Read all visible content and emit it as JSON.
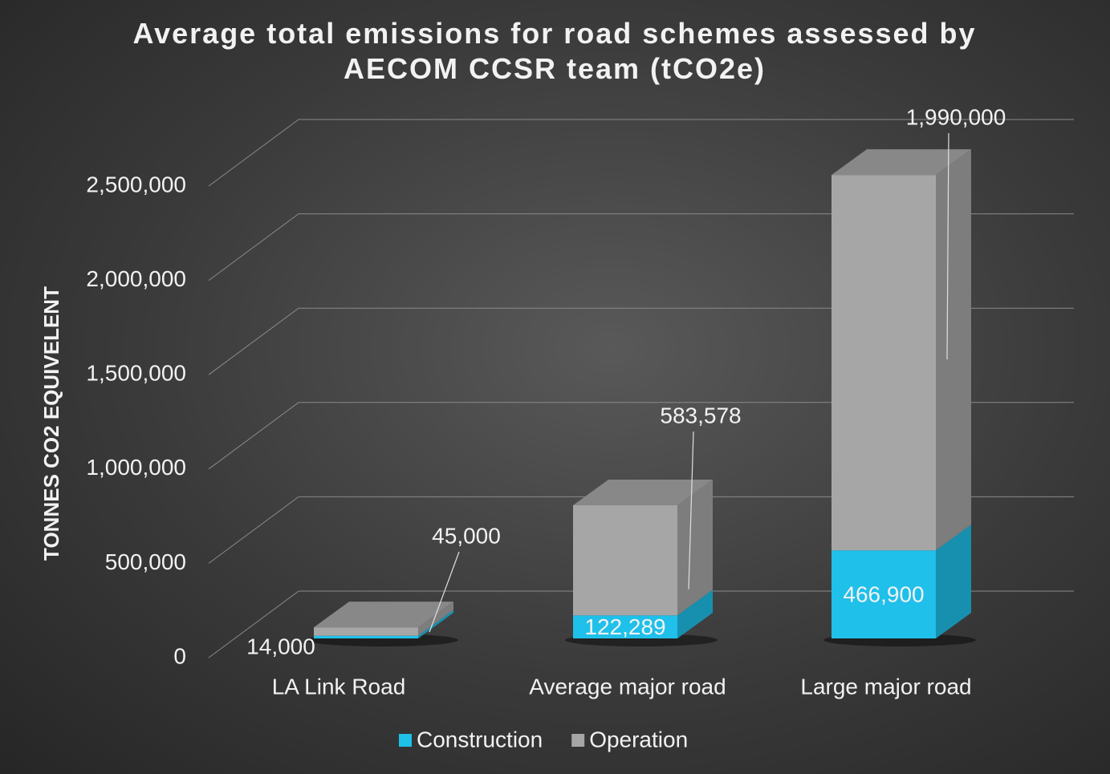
{
  "chart_data": {
    "type": "bar3d_stacked",
    "title": "Average total emissions for road schemes assessed by AECOM CCSR team (tCO2e)",
    "ylabel": "TONNES CO2 EQUIVELENT",
    "categories": [
      "LA Link Road",
      "Average major road",
      "Large major road"
    ],
    "series": [
      {
        "name": "Construction",
        "color": "#1fc0ea",
        "values": [
          14000,
          122289,
          466900
        ],
        "value_labels": [
          "14,000",
          "122,289",
          "466,900"
        ]
      },
      {
        "name": "Operation",
        "color": "#a6a6a6",
        "values": [
          45000,
          583578,
          1990000
        ],
        "value_labels": [
          "45,000",
          "583,578",
          "1,990,000"
        ]
      }
    ],
    "ylim": [
      0,
      2500000
    ],
    "yticks": [
      0,
      {
        "value": 500000,
        "label": "500,000"
      },
      {
        "value": 1000000,
        "label": "1,000,000"
      },
      {
        "value": 1500000,
        "label": "1,500,000"
      },
      {
        "value": 2000000,
        "label": "2,000,000"
      },
      {
        "value": 2500000,
        "label": "2,500,000"
      }
    ],
    "grid": true,
    "legend": "bottom"
  }
}
